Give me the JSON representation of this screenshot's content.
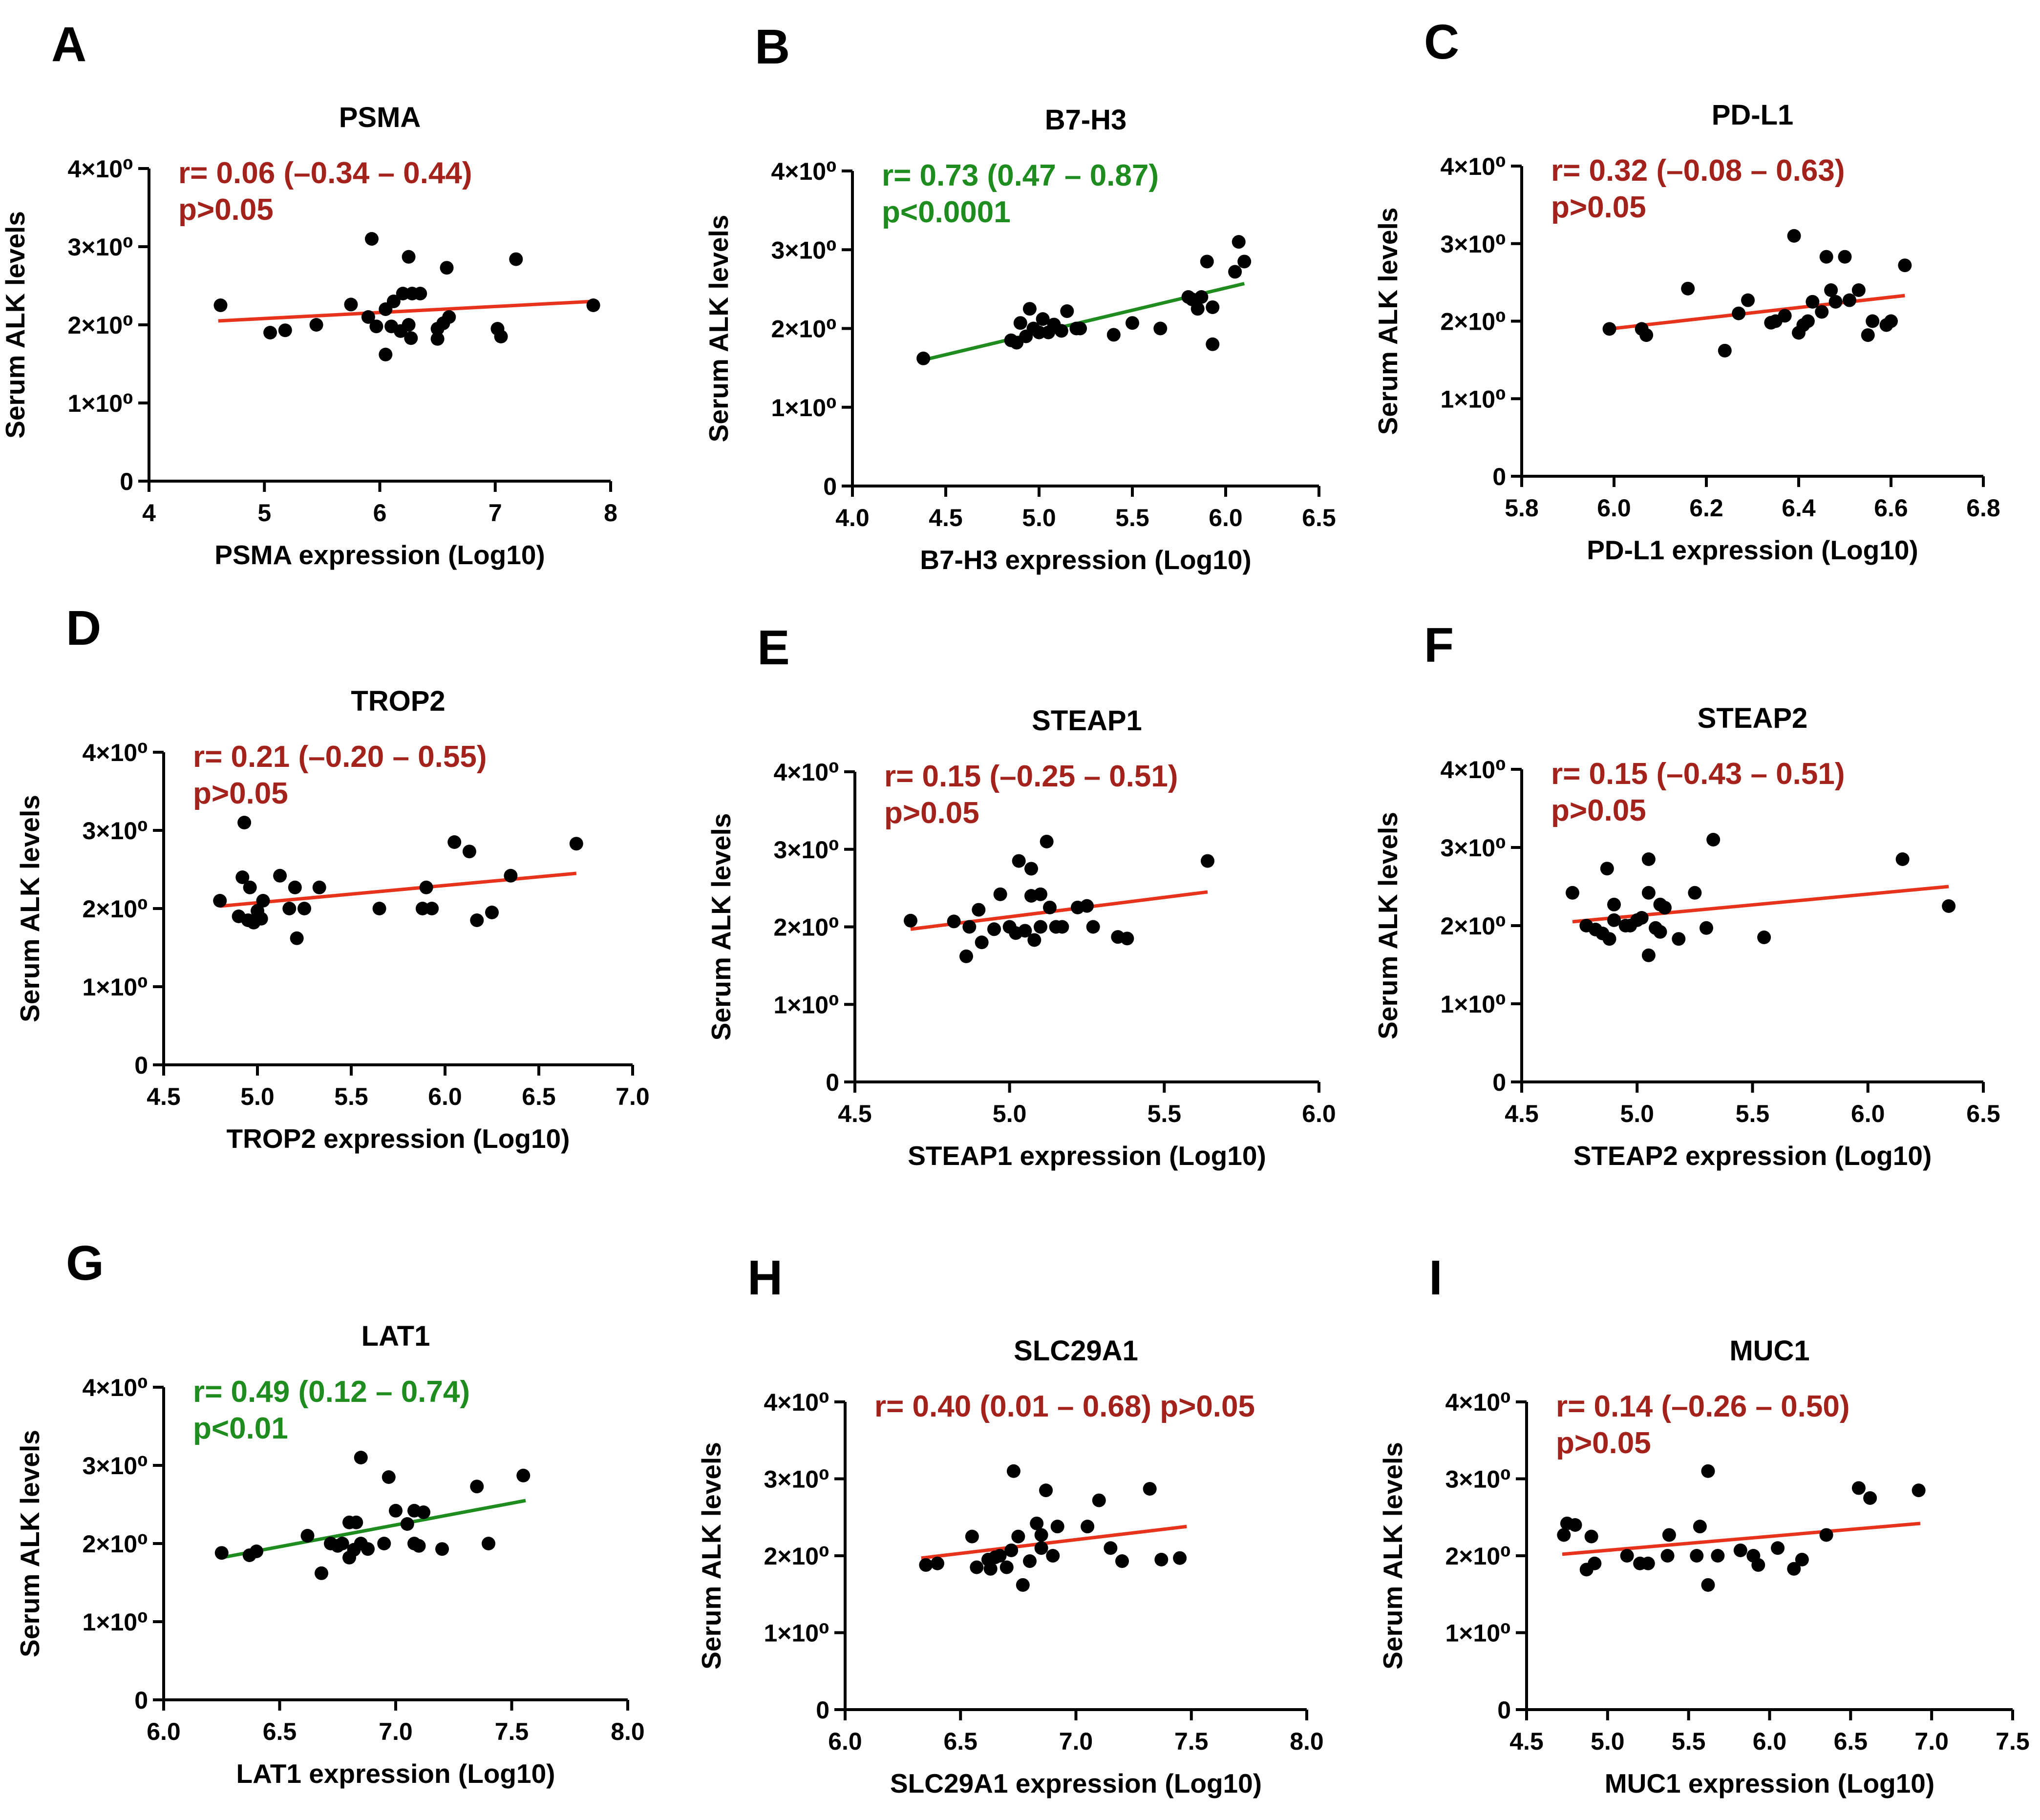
{
  "colors": {
    "red": "#e8331c",
    "green": "#1e8c1e",
    "dark_red": "#a3231c",
    "axis": "#000000",
    "point": "#000000"
  },
  "y_axis": {
    "label": "Serum ALK levels",
    "ticks": [
      "0",
      "1×10⁰",
      "2×10⁰",
      "3×10⁰",
      "4×10⁰"
    ],
    "ylim": [
      0,
      4
    ]
  },
  "chart_data": [
    {
      "type": "scatter",
      "panel": "A",
      "title": "PSMA",
      "xlabel": "PSMA expression (Log10)",
      "xticks": [
        4,
        5,
        6,
        7,
        8
      ],
      "xtick_labels": [
        "4",
        "5",
        "6",
        "7",
        "8"
      ],
      "xlim": [
        4,
        8
      ],
      "stat_line1": "r= 0.06 (–0.34 – 0.44)",
      "stat_line2": "p>0.05",
      "stat_color": "dark_red",
      "fit": {
        "color": "red",
        "x": [
          4.6,
          7.85
        ],
        "y": [
          2.05,
          2.3
        ]
      },
      "points": [
        [
          4.62,
          2.25
        ],
        [
          5.05,
          1.9
        ],
        [
          5.18,
          1.93
        ],
        [
          5.45,
          2.0
        ],
        [
          5.75,
          2.26
        ],
        [
          5.9,
          2.1
        ],
        [
          5.93,
          3.1
        ],
        [
          5.97,
          1.98
        ],
        [
          6.05,
          2.2
        ],
        [
          6.05,
          1.62
        ],
        [
          6.1,
          1.98
        ],
        [
          6.12,
          2.3
        ],
        [
          6.18,
          1.92
        ],
        [
          6.2,
          2.4
        ],
        [
          6.25,
          2.87
        ],
        [
          6.25,
          2.0
        ],
        [
          6.27,
          1.83
        ],
        [
          6.28,
          2.4
        ],
        [
          6.35,
          2.4
        ],
        [
          6.5,
          1.95
        ],
        [
          6.5,
          1.82
        ],
        [
          6.55,
          2.02
        ],
        [
          6.58,
          2.73
        ],
        [
          6.6,
          2.1
        ],
        [
          7.02,
          1.95
        ],
        [
          7.05,
          1.85
        ],
        [
          7.18,
          2.84
        ],
        [
          7.85,
          2.25
        ]
      ]
    },
    {
      "type": "scatter",
      "panel": "B",
      "title": "B7-H3",
      "xlabel": "B7-H3 expression (Log10)",
      "xticks": [
        4.0,
        4.5,
        5.0,
        5.5,
        6.0,
        6.5
      ],
      "xtick_labels": [
        "4.0",
        "4.5",
        "5.0",
        "5.5",
        "6.0",
        "6.5"
      ],
      "xlim": [
        4.0,
        6.5
      ],
      "stat_line1": "r= 0.73 (0.47 – 0.87)",
      "stat_line2": "p<0.0001",
      "stat_color": "green",
      "fit": {
        "color": "green",
        "x": [
          4.38,
          6.1
        ],
        "y": [
          1.6,
          2.57
        ]
      },
      "points": [
        [
          4.38,
          1.62
        ],
        [
          4.85,
          1.85
        ],
        [
          4.88,
          1.82
        ],
        [
          4.9,
          2.07
        ],
        [
          4.93,
          1.9
        ],
        [
          4.95,
          2.25
        ],
        [
          4.97,
          2.0
        ],
        [
          5.0,
          1.95
        ],
        [
          5.02,
          2.12
        ],
        [
          5.05,
          1.95
        ],
        [
          5.08,
          2.05
        ],
        [
          5.12,
          1.97
        ],
        [
          5.15,
          2.22
        ],
        [
          5.2,
          2.0
        ],
        [
          5.22,
          2.0
        ],
        [
          5.4,
          1.92
        ],
        [
          5.5,
          2.07
        ],
        [
          5.65,
          2.0
        ],
        [
          5.8,
          2.4
        ],
        [
          5.82,
          2.37
        ],
        [
          5.85,
          2.25
        ],
        [
          5.87,
          2.4
        ],
        [
          5.9,
          2.85
        ],
        [
          5.93,
          2.27
        ],
        [
          5.93,
          1.8
        ],
        [
          6.05,
          2.72
        ],
        [
          6.07,
          3.1
        ],
        [
          6.1,
          2.85
        ]
      ]
    },
    {
      "type": "scatter",
      "panel": "C",
      "title": "PD-L1",
      "xlabel": "PD-L1 expression (Log10)",
      "xticks": [
        5.8,
        6.0,
        6.2,
        6.4,
        6.6,
        6.8
      ],
      "xtick_labels": [
        "5.8",
        "6.0",
        "6.2",
        "6.4",
        "6.6",
        "6.8"
      ],
      "xlim": [
        5.8,
        6.8
      ],
      "stat_line1": "r= 0.32 (–0.08 – 0.63)",
      "stat_line2": "p>0.05",
      "stat_color": "dark_red",
      "fit": {
        "color": "red",
        "x": [
          5.99,
          6.63
        ],
        "y": [
          1.9,
          2.33
        ]
      },
      "points": [
        [
          5.99,
          1.9
        ],
        [
          6.06,
          1.9
        ],
        [
          6.07,
          1.82
        ],
        [
          6.16,
          2.42
        ],
        [
          6.24,
          1.62
        ],
        [
          6.27,
          2.1
        ],
        [
          6.29,
          2.27
        ],
        [
          6.34,
          1.98
        ],
        [
          6.35,
          2.0
        ],
        [
          6.37,
          2.07
        ],
        [
          6.39,
          3.1
        ],
        [
          6.4,
          1.85
        ],
        [
          6.41,
          1.95
        ],
        [
          6.42,
          2.0
        ],
        [
          6.43,
          2.25
        ],
        [
          6.45,
          2.12
        ],
        [
          6.46,
          2.83
        ],
        [
          6.47,
          2.4
        ],
        [
          6.48,
          2.25
        ],
        [
          6.5,
          2.83
        ],
        [
          6.51,
          2.27
        ],
        [
          6.53,
          2.4
        ],
        [
          6.55,
          1.82
        ],
        [
          6.56,
          2.0
        ],
        [
          6.59,
          1.95
        ],
        [
          6.6,
          2.0
        ],
        [
          6.63,
          2.72
        ]
      ]
    },
    {
      "type": "scatter",
      "panel": "D",
      "title": "TROP2",
      "xlabel": "TROP2 expression (Log10)",
      "xticks": [
        4.5,
        5.0,
        5.5,
        6.0,
        6.5,
        7.0
      ],
      "xtick_labels": [
        "4.5",
        "5.0",
        "5.5",
        "6.0",
        "6.5",
        "7.0"
      ],
      "xlim": [
        4.5,
        7.0
      ],
      "stat_line1": "r= 0.21 (–0.20 – 0.55)",
      "stat_line2": "p>0.05",
      "stat_color": "dark_red",
      "fit": {
        "color": "red",
        "x": [
          4.8,
          6.7
        ],
        "y": [
          2.03,
          2.45
        ]
      },
      "points": [
        [
          4.8,
          2.1
        ],
        [
          4.9,
          1.9
        ],
        [
          4.92,
          2.4
        ],
        [
          4.93,
          3.1
        ],
        [
          4.95,
          1.85
        ],
        [
          4.96,
          2.27
        ],
        [
          4.98,
          1.82
        ],
        [
          5.0,
          1.97
        ],
        [
          5.02,
          1.87
        ],
        [
          5.03,
          2.1
        ],
        [
          5.12,
          2.42
        ],
        [
          5.17,
          2.0
        ],
        [
          5.2,
          2.27
        ],
        [
          5.21,
          1.62
        ],
        [
          5.25,
          2.0
        ],
        [
          5.33,
          2.27
        ],
        [
          5.65,
          2.0
        ],
        [
          5.88,
          2.0
        ],
        [
          5.9,
          2.27
        ],
        [
          5.93,
          2.0
        ],
        [
          6.05,
          2.85
        ],
        [
          6.13,
          2.73
        ],
        [
          6.17,
          1.85
        ],
        [
          6.25,
          1.95
        ],
        [
          6.35,
          2.42
        ],
        [
          6.7,
          2.83
        ]
      ]
    },
    {
      "type": "scatter",
      "panel": "E",
      "title": "STEAP1",
      "xlabel": "STEAP1 expression (Log10)",
      "xticks": [
        4.5,
        5.0,
        5.5,
        6.0
      ],
      "xtick_labels": [
        "4.5",
        "5.0",
        "5.5",
        "6.0"
      ],
      "xlim": [
        4.5,
        6.0
      ],
      "stat_line1": "r= 0.15 (–0.25 – 0.51)",
      "stat_line2": "p>0.05",
      "stat_color": "dark_red",
      "fit": {
        "color": "red",
        "x": [
          4.68,
          5.64
        ],
        "y": [
          1.97,
          2.45
        ]
      },
      "points": [
        [
          4.68,
          2.08
        ],
        [
          4.82,
          2.07
        ],
        [
          4.86,
          1.62
        ],
        [
          4.87,
          2.0
        ],
        [
          4.9,
          2.22
        ],
        [
          4.91,
          1.8
        ],
        [
          4.95,
          1.97
        ],
        [
          4.97,
          2.42
        ],
        [
          5.0,
          2.0
        ],
        [
          5.02,
          1.92
        ],
        [
          5.03,
          2.85
        ],
        [
          5.05,
          1.95
        ],
        [
          5.07,
          2.75
        ],
        [
          5.07,
          2.4
        ],
        [
          5.08,
          1.83
        ],
        [
          5.1,
          2.42
        ],
        [
          5.1,
          2.0
        ],
        [
          5.12,
          3.1
        ],
        [
          5.13,
          2.25
        ],
        [
          5.15,
          2.0
        ],
        [
          5.17,
          2.0
        ],
        [
          5.22,
          2.25
        ],
        [
          5.25,
          2.27
        ],
        [
          5.27,
          2.0
        ],
        [
          5.35,
          1.87
        ],
        [
          5.38,
          1.85
        ],
        [
          5.64,
          2.85
        ]
      ]
    },
    {
      "type": "scatter",
      "panel": "F",
      "title": "STEAP2",
      "xlabel": "STEAP2 expression (Log10)",
      "xticks": [
        4.5,
        5.0,
        5.5,
        6.0,
        6.5
      ],
      "xtick_labels": [
        "4.5",
        "5.0",
        "5.5",
        "6.0",
        "6.5"
      ],
      "xlim": [
        4.5,
        6.5
      ],
      "stat_line1": "r= 0.15 (–0.43 – 0.51)",
      "stat_line2": "p>0.05",
      "stat_color": "dark_red",
      "fit": {
        "color": "red",
        "x": [
          4.72,
          6.35
        ],
        "y": [
          2.05,
          2.5
        ]
      },
      "points": [
        [
          4.72,
          2.42
        ],
        [
          4.78,
          2.0
        ],
        [
          4.82,
          1.95
        ],
        [
          4.85,
          1.9
        ],
        [
          4.87,
          2.73
        ],
        [
          4.88,
          1.83
        ],
        [
          4.9,
          2.07
        ],
        [
          4.9,
          2.27
        ],
        [
          4.95,
          2.0
        ],
        [
          4.97,
          2.0
        ],
        [
          5.0,
          2.07
        ],
        [
          5.02,
          2.1
        ],
        [
          5.05,
          2.42
        ],
        [
          5.05,
          2.85
        ],
        [
          5.05,
          1.62
        ],
        [
          5.08,
          1.97
        ],
        [
          5.1,
          2.27
        ],
        [
          5.1,
          1.92
        ],
        [
          5.12,
          2.23
        ],
        [
          5.18,
          1.83
        ],
        [
          5.25,
          2.42
        ],
        [
          5.3,
          1.97
        ],
        [
          5.33,
          3.1
        ],
        [
          5.55,
          1.85
        ],
        [
          6.15,
          2.85
        ],
        [
          6.35,
          2.25
        ]
      ]
    },
    {
      "type": "scatter",
      "panel": "G",
      "title": "LAT1",
      "xlabel": "LAT1 expression (Log10)",
      "xticks": [
        6.0,
        6.5,
        7.0,
        7.5,
        8.0
      ],
      "xtick_labels": [
        "6.0",
        "6.5",
        "7.0",
        "7.5",
        "8.0"
      ],
      "xlim": [
        6.0,
        8.0
      ],
      "stat_line1": "r= 0.49 (0.12 – 0.74)",
      "stat_line2": "p<0.01",
      "stat_color": "green",
      "fit": {
        "color": "green",
        "x": [
          6.25,
          7.56
        ],
        "y": [
          1.82,
          2.55
        ]
      },
      "points": [
        [
          6.25,
          1.88
        ],
        [
          6.37,
          1.85
        ],
        [
          6.4,
          1.9
        ],
        [
          6.62,
          2.1
        ],
        [
          6.68,
          1.62
        ],
        [
          6.72,
          2.0
        ],
        [
          6.75,
          1.97
        ],
        [
          6.77,
          2.0
        ],
        [
          6.8,
          2.27
        ],
        [
          6.8,
          1.82
        ],
        [
          6.82,
          1.92
        ],
        [
          6.83,
          2.27
        ],
        [
          6.85,
          2.0
        ],
        [
          6.85,
          3.1
        ],
        [
          6.88,
          1.93
        ],
        [
          6.95,
          2.0
        ],
        [
          6.97,
          2.85
        ],
        [
          7.0,
          2.42
        ],
        [
          7.05,
          2.25
        ],
        [
          7.08,
          2.42
        ],
        [
          7.08,
          2.0
        ],
        [
          7.1,
          1.97
        ],
        [
          7.12,
          2.4
        ],
        [
          7.2,
          1.93
        ],
        [
          7.35,
          2.73
        ],
        [
          7.4,
          2.0
        ],
        [
          7.55,
          2.87
        ]
      ]
    },
    {
      "type": "scatter",
      "panel": "H",
      "title": "SLC29A1",
      "xlabel": "SLC29A1 expression (Log10)",
      "xticks": [
        6.0,
        6.5,
        7.0,
        7.5,
        8.0
      ],
      "xtick_labels": [
        "6.0",
        "6.5",
        "7.0",
        "7.5",
        "8.0"
      ],
      "xlim": [
        6.0,
        8.0
      ],
      "stat_line1": "r= 0.40 (0.01 – 0.68) p>0.05",
      "stat_line2": "",
      "stat_color": "dark_red",
      "fit": {
        "color": "red",
        "x": [
          6.33,
          7.48
        ],
        "y": [
          1.97,
          2.38
        ]
      },
      "points": [
        [
          6.35,
          1.88
        ],
        [
          6.4,
          1.9
        ],
        [
          6.55,
          2.25
        ],
        [
          6.57,
          1.85
        ],
        [
          6.62,
          1.95
        ],
        [
          6.63,
          1.83
        ],
        [
          6.65,
          1.98
        ],
        [
          6.67,
          2.0
        ],
        [
          6.7,
          1.85
        ],
        [
          6.72,
          2.07
        ],
        [
          6.73,
          3.1
        ],
        [
          6.75,
          2.25
        ],
        [
          6.77,
          1.62
        ],
        [
          6.8,
          1.93
        ],
        [
          6.83,
          2.42
        ],
        [
          6.85,
          2.27
        ],
        [
          6.85,
          2.1
        ],
        [
          6.87,
          2.85
        ],
        [
          6.9,
          2.0
        ],
        [
          6.92,
          2.38
        ],
        [
          7.05,
          2.38
        ],
        [
          7.1,
          2.72
        ],
        [
          7.15,
          2.1
        ],
        [
          7.2,
          1.93
        ],
        [
          7.32,
          2.87
        ],
        [
          7.37,
          1.95
        ],
        [
          7.45,
          1.97
        ]
      ]
    },
    {
      "type": "scatter",
      "panel": "I",
      "title": "MUC1",
      "xlabel": "MUC1 expression (Log10)",
      "xticks": [
        4.5,
        5.0,
        5.5,
        6.0,
        6.5,
        7.0,
        7.5
      ],
      "xtick_labels": [
        "4.5",
        "5.0",
        "5.5",
        "6.0",
        "6.5",
        "7.0",
        "7.5"
      ],
      "xlim": [
        4.5,
        7.5
      ],
      "stat_line1": "r= 0.14 (–0.26 – 0.50)",
      "stat_line2": "p>0.05",
      "stat_color": "dark_red",
      "fit": {
        "color": "red",
        "x": [
          4.72,
          6.93
        ],
        "y": [
          2.02,
          2.42
        ]
      },
      "points": [
        [
          4.73,
          2.27
        ],
        [
          4.75,
          2.42
        ],
        [
          4.8,
          2.4
        ],
        [
          4.87,
          1.82
        ],
        [
          4.9,
          2.25
        ],
        [
          4.92,
          1.9
        ],
        [
          5.12,
          2.0
        ],
        [
          5.2,
          1.9
        ],
        [
          5.25,
          1.9
        ],
        [
          5.37,
          2.0
        ],
        [
          5.38,
          2.27
        ],
        [
          5.55,
          2.0
        ],
        [
          5.57,
          2.38
        ],
        [
          5.62,
          3.1
        ],
        [
          5.62,
          1.62
        ],
        [
          5.68,
          2.0
        ],
        [
          5.82,
          2.07
        ],
        [
          5.9,
          2.0
        ],
        [
          5.93,
          1.88
        ],
        [
          6.05,
          2.1
        ],
        [
          6.15,
          1.83
        ],
        [
          6.2,
          1.95
        ],
        [
          6.35,
          2.27
        ],
        [
          6.55,
          2.88
        ],
        [
          6.62,
          2.75
        ],
        [
          6.92,
          2.85
        ]
      ]
    }
  ]
}
